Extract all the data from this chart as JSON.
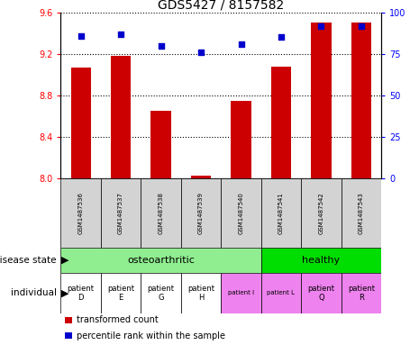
{
  "title": "GDS5427 / 8157582",
  "samples": [
    "GSM1487536",
    "GSM1487537",
    "GSM1487538",
    "GSM1487539",
    "GSM1487540",
    "GSM1487541",
    "GSM1487542",
    "GSM1487543"
  ],
  "transformed_counts": [
    9.07,
    9.18,
    8.65,
    8.03,
    8.75,
    9.08,
    9.5,
    9.5
  ],
  "percentile_ranks": [
    86,
    87,
    80,
    76,
    81,
    85,
    92,
    92
  ],
  "ylim_left": [
    8.0,
    9.6
  ],
  "ylim_right": [
    0,
    100
  ],
  "yticks_left": [
    8.0,
    8.4,
    8.8,
    9.2,
    9.6
  ],
  "yticks_right": [
    0,
    25,
    50,
    75,
    100
  ],
  "disease_state_groups": [
    {
      "label": "osteoarthritic",
      "start": 0,
      "end": 5,
      "color": "#90ee90"
    },
    {
      "label": "healthy",
      "start": 5,
      "end": 8,
      "color": "#00dd00"
    }
  ],
  "individual_labels": [
    "patient\nD",
    "patient\nE",
    "patient\nG",
    "patient\nH",
    "patient I",
    "patient L",
    "patient\nQ",
    "patient\nR"
  ],
  "individual_colors": [
    "#ffffff",
    "#ffffff",
    "#ffffff",
    "#ffffff",
    "#ee82ee",
    "#ee82ee",
    "#ee82ee",
    "#ee82ee"
  ],
  "individual_fontsize": [
    6,
    6,
    6,
    6,
    5,
    5,
    6,
    6
  ],
  "bar_color": "#cc0000",
  "dot_color": "#0000cc",
  "bar_width": 0.5,
  "legend_items": [
    {
      "color": "#cc0000",
      "label": "transformed count"
    },
    {
      "color": "#0000cc",
      "label": "percentile rank within the sample"
    }
  ],
  "sample_label_fontsize": 5,
  "gray_color": "#d3d3d3"
}
